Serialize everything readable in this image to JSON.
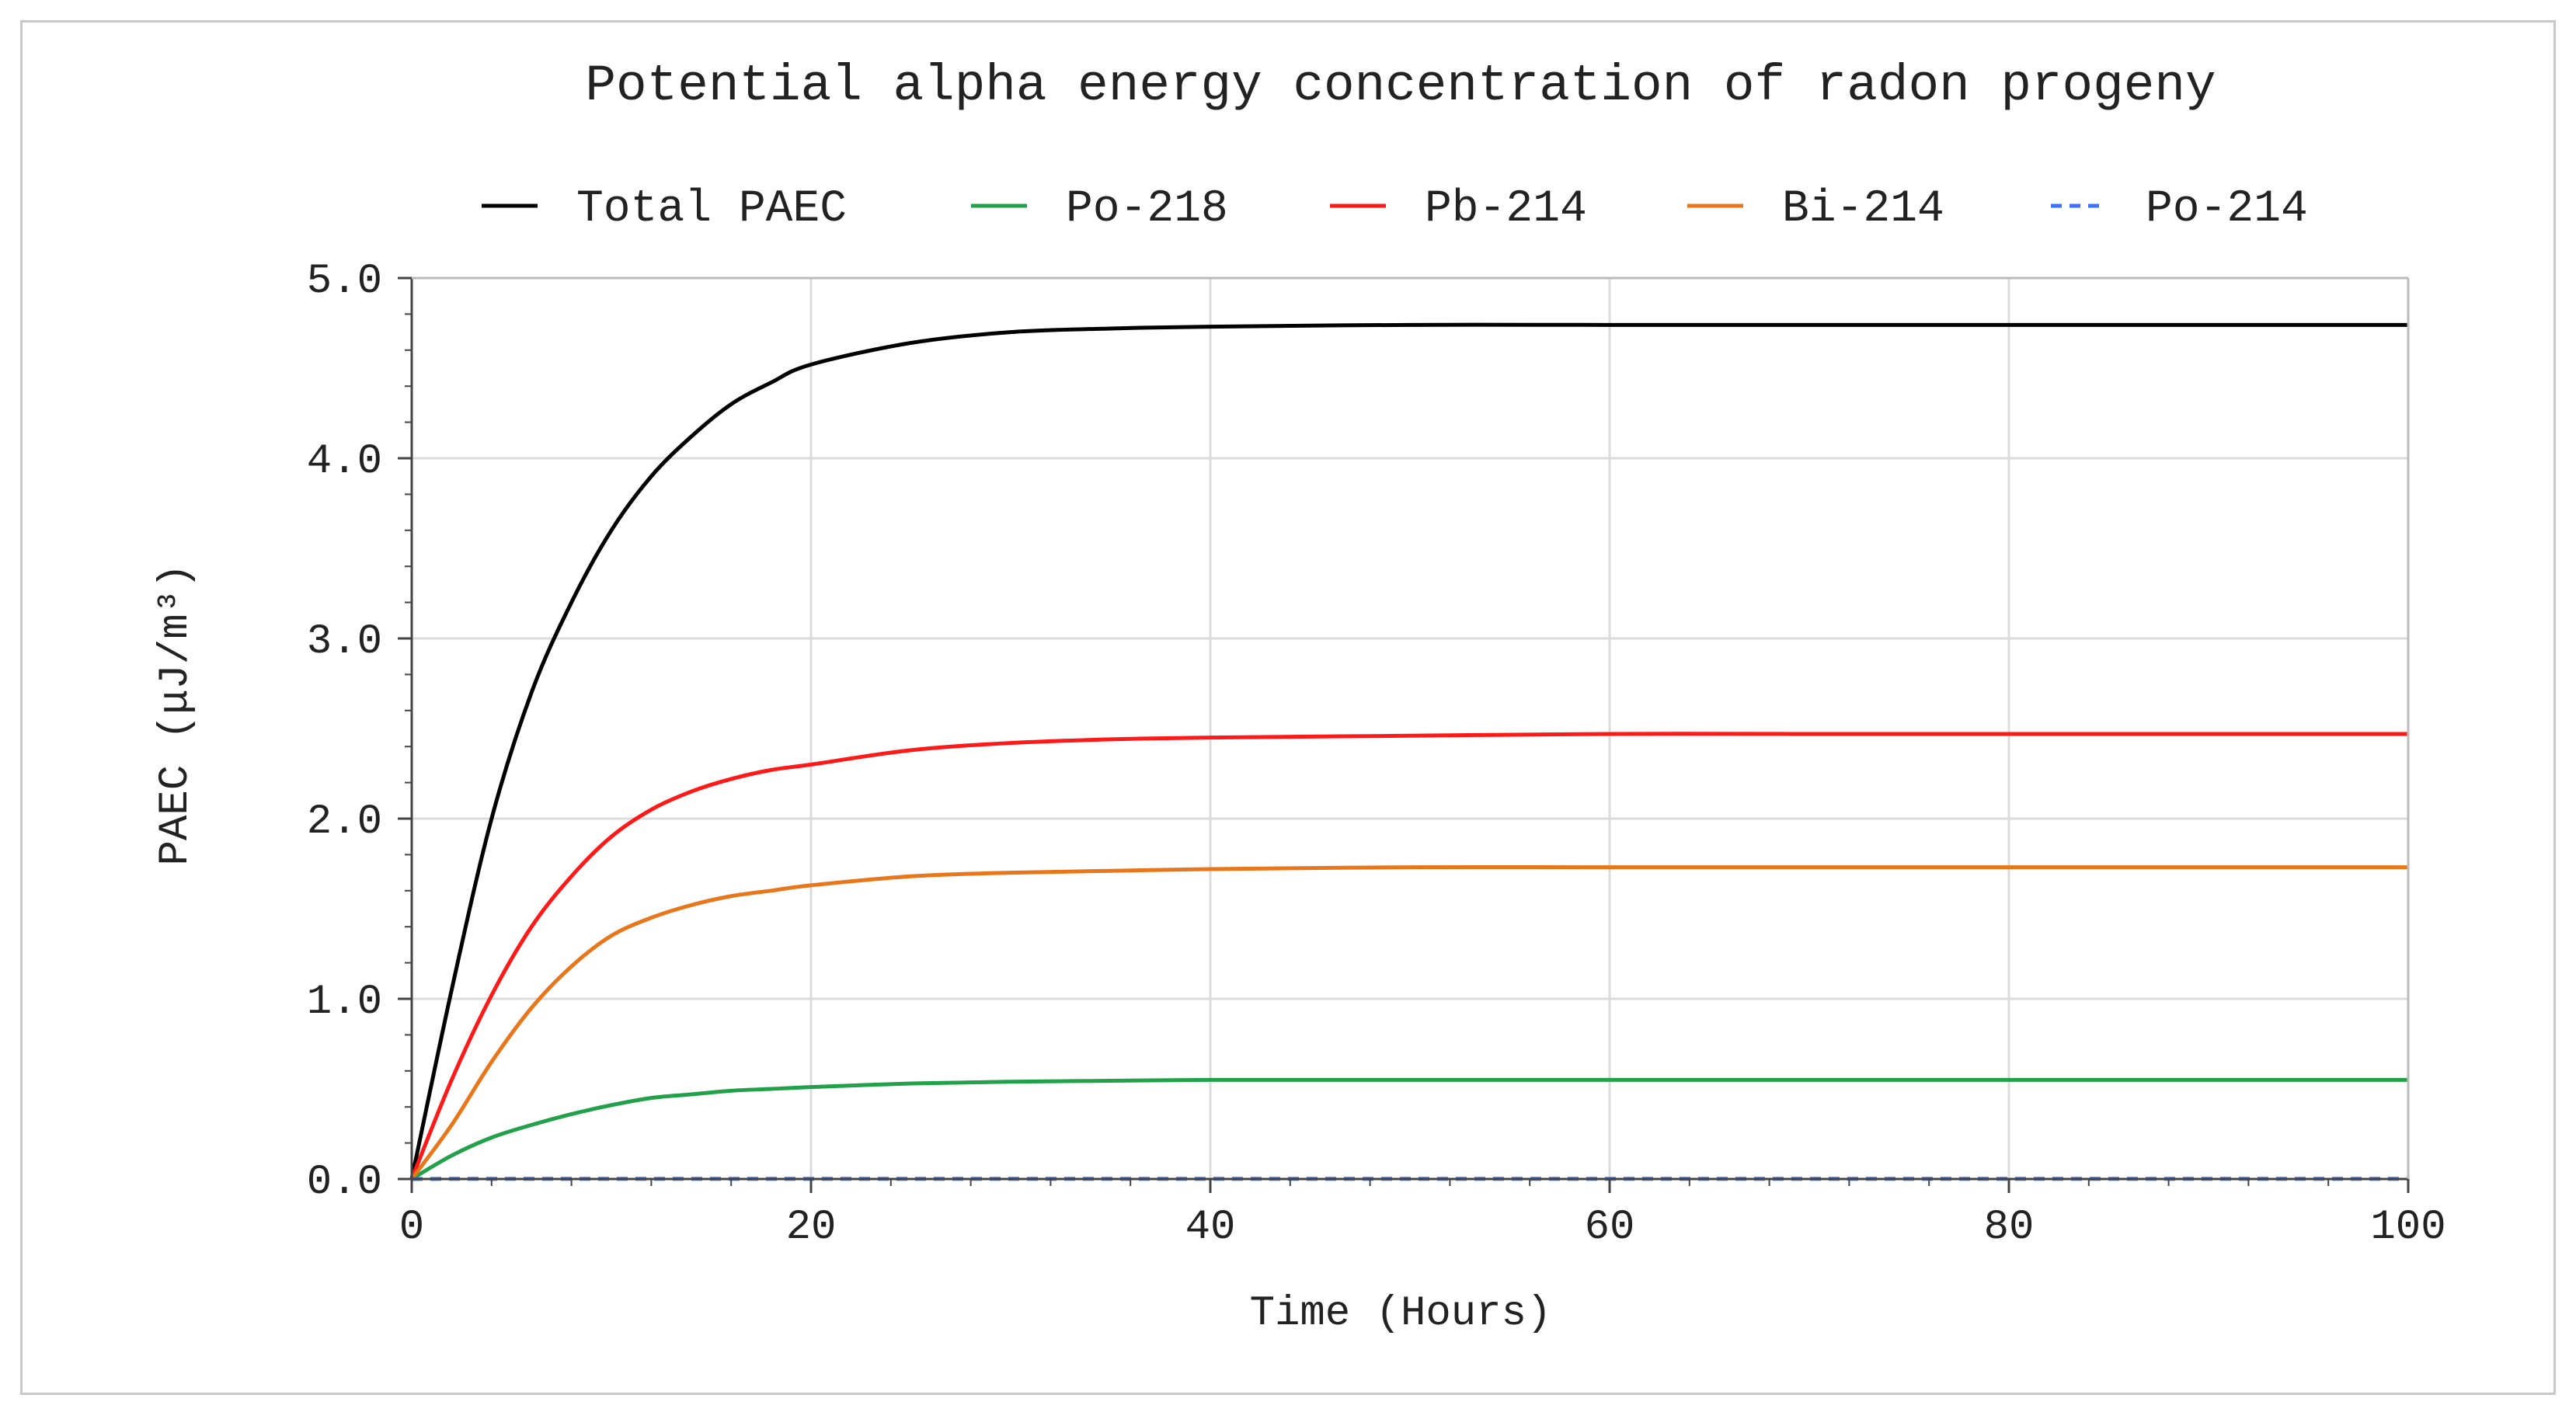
{
  "chart_data": {
    "type": "line",
    "title": "Potential alpha energy concentration of radon progeny",
    "xlabel": "Time (Hours)",
    "ylabel": "PAEC (μJ/m³)",
    "xlim": [
      0,
      100
    ],
    "ylim": [
      0,
      5
    ],
    "xticks": [
      {
        "value": 0,
        "label": "0"
      },
      {
        "value": 20,
        "label": "20"
      },
      {
        "value": 40,
        "label": "40"
      },
      {
        "value": 60,
        "label": "60"
      },
      {
        "value": 80,
        "label": "80"
      },
      {
        "value": 100,
        "label": "100"
      }
    ],
    "yticks": [
      {
        "value": 0,
        "label": "0.0"
      },
      {
        "value": 1,
        "label": "1.0"
      },
      {
        "value": 2,
        "label": "2.0"
      },
      {
        "value": 3,
        "label": "3.0"
      },
      {
        "value": 4,
        "label": "4.0"
      },
      {
        "value": 5,
        "label": "5.0"
      }
    ],
    "grid": true,
    "legend_position": "top",
    "x": [
      0,
      2,
      4,
      6,
      8,
      10,
      12,
      14,
      16,
      18,
      20,
      25,
      30,
      35,
      40,
      50,
      60,
      70,
      80,
      90,
      100
    ],
    "series": [
      {
        "name": "Total PAEC",
        "color": "#000000",
        "dash": "solid",
        "values": [
          0,
          1.05,
          2.0,
          2.7,
          3.2,
          3.6,
          3.9,
          4.12,
          4.3,
          4.42,
          4.52,
          4.64,
          4.7,
          4.72,
          4.73,
          4.74,
          4.74,
          4.74,
          4.74,
          4.74,
          4.74
        ]
      },
      {
        "name": "Po-218",
        "color": "#22a04a",
        "dash": "solid",
        "values": [
          0,
          0.13,
          0.23,
          0.3,
          0.36,
          0.41,
          0.45,
          0.47,
          0.49,
          0.5,
          0.51,
          0.53,
          0.54,
          0.545,
          0.55,
          0.55,
          0.55,
          0.55,
          0.55,
          0.55,
          0.55
        ]
      },
      {
        "name": "Pb-214",
        "color": "#ff1a1a",
        "dash": "solid",
        "values": [
          0,
          0.55,
          1.02,
          1.4,
          1.68,
          1.9,
          2.05,
          2.15,
          2.22,
          2.27,
          2.3,
          2.38,
          2.42,
          2.44,
          2.45,
          2.46,
          2.47,
          2.47,
          2.47,
          2.47,
          2.47
        ]
      },
      {
        "name": "Bi-214",
        "color": "#e8771c",
        "dash": "solid",
        "values": [
          0,
          0.3,
          0.65,
          0.95,
          1.18,
          1.35,
          1.45,
          1.52,
          1.57,
          1.6,
          1.63,
          1.68,
          1.7,
          1.71,
          1.72,
          1.73,
          1.73,
          1.73,
          1.73,
          1.73,
          1.73
        ]
      },
      {
        "name": "Po-214",
        "color": "#3f6fff",
        "dash": "dashed",
        "values": [
          0,
          0.001,
          0.001,
          0.001,
          0.001,
          0.001,
          0.001,
          0.001,
          0.001,
          0.001,
          0.001,
          0.001,
          0.001,
          0.001,
          0.001,
          0.001,
          0.001,
          0.001,
          0.001,
          0.001,
          0.001
        ]
      }
    ]
  }
}
